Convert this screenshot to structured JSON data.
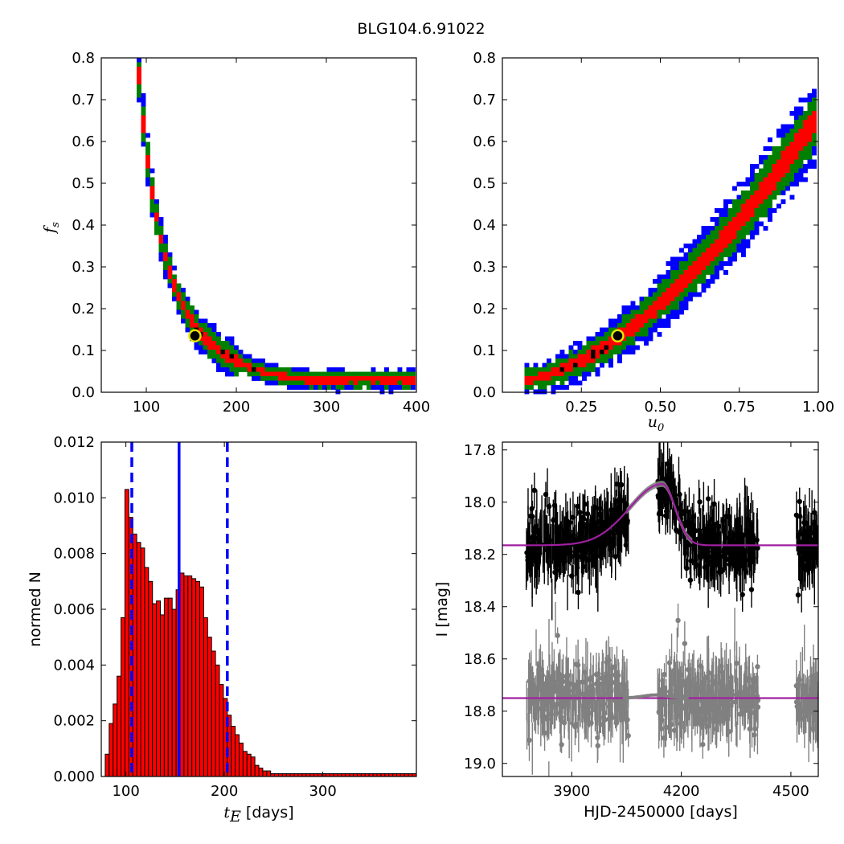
{
  "figure": {
    "title": "BLG104.6.91022"
  },
  "chart_data": [
    {
      "type": "heatmap",
      "panel": "tE_vs_fs",
      "xlabel": "",
      "ylabel": "f",
      "ylabel_sub": "s",
      "xlim": [
        50,
        400
      ],
      "ylim": [
        0,
        0.8
      ],
      "x_ticks": [
        "100",
        "200",
        "300",
        "400"
      ],
      "y_ticks": [
        "0.0",
        "0.1",
        "0.2",
        "0.3",
        "0.4",
        "0.5",
        "0.6",
        "0.7",
        "0.8"
      ],
      "best_fit": {
        "x": 154,
        "y": 0.135
      },
      "levels_colors": {
        "outer": "#0000ff",
        "mid": "#008000",
        "inner": "#ff0000",
        "peak": "#000000"
      },
      "curve": {
        "form": "fs = 0.80 * (80 / (tE - 10))^2.75",
        "x_range": [
          80,
          400
        ]
      }
    },
    {
      "type": "heatmap",
      "panel": "u0_vs_fs",
      "xlabel": "u",
      "xlabel_sub": "0",
      "ylabel": "",
      "xlim": [
        0,
        1.0
      ],
      "ylim": [
        0,
        0.8
      ],
      "x_ticks": [
        "0.25",
        "0.50",
        "0.75",
        "1.00"
      ],
      "y_ticks": [
        "0.0",
        "0.1",
        "0.2",
        "0.3",
        "0.4",
        "0.5",
        "0.6",
        "0.7",
        "0.8"
      ],
      "best_fit": {
        "x": 0.365,
        "y": 0.135
      },
      "levels_colors": {
        "outer": "#0000ff",
        "mid": "#008000",
        "inner": "#ff0000",
        "peak": "#000000"
      },
      "curve": {
        "form": "fs = 0.03 + 0.63 * ((u0 - 0.07)/0.93)^1.6",
        "x_range": [
          0.07,
          1.0
        ]
      }
    },
    {
      "type": "bar",
      "panel": "tE_histogram",
      "xlabel": "t",
      "xlabel_sub": "E",
      "xlabel_suffix": " [days]",
      "ylabel": "normed N",
      "xlim": [
        75,
        395
      ],
      "ylim": [
        0,
        0.012
      ],
      "x_ticks": [
        "100",
        "200",
        "300"
      ],
      "y_ticks": [
        "0.000",
        "0.002",
        "0.004",
        "0.006",
        "0.008",
        "0.010",
        "0.012"
      ],
      "bin_start": 79,
      "bin_width": 4,
      "values": [
        0.0008,
        0.0019,
        0.0026,
        0.0036,
        0.0057,
        0.0103,
        0.0093,
        0.0087,
        0.0084,
        0.0082,
        0.0075,
        0.007,
        0.0062,
        0.0063,
        0.0058,
        0.0064,
        0.0064,
        0.006,
        0.0067,
        0.0073,
        0.0072,
        0.0072,
        0.0071,
        0.007,
        0.0068,
        0.0057,
        0.005,
        0.0045,
        0.004,
        0.0033,
        0.0028,
        0.0022,
        0.0018,
        0.0015,
        0.0012,
        0.0009,
        0.0008,
        0.0007,
        0.0004,
        0.0003,
        0.0002,
        0.0002,
        0.0001,
        0.0001,
        0.0001,
        0.0001,
        0.0001,
        0.0001,
        0.0001,
        0.0001,
        0.0001,
        0.0001,
        0.0001,
        0.0001,
        0.0001,
        0.0001,
        0.0001,
        0.0001,
        0.0001,
        0.0001,
        0.0001,
        0.0001,
        0.0001,
        0.0001,
        0.0001,
        0.0001,
        0.0001,
        0.0001,
        0.0001,
        0.0001,
        0.0001,
        0.0001,
        0.0001,
        0.0001,
        0.0001,
        0.0001,
        0.0001,
        0.0001,
        0.0001
      ],
      "bar_color": "#ff0000",
      "vlines": [
        {
          "x": 154,
          "style": "solid",
          "color": "#0000ff"
        },
        {
          "x": 106,
          "style": "dashed",
          "color": "#0000ff"
        },
        {
          "x": 203,
          "style": "dashed",
          "color": "#0000ff"
        }
      ]
    },
    {
      "type": "scatter",
      "panel": "lightcurve",
      "xlabel": "HJD-2450000 [days]",
      "ylabel": "I [mag]",
      "xlim": [
        3710,
        4575
      ],
      "ylim": [
        19.05,
        17.77
      ],
      "x_ticks": [
        "3900",
        "4200",
        "4500"
      ],
      "y_ticks": [
        "17.8",
        "18.0",
        "18.2",
        "18.4",
        "18.6",
        "18.8",
        "19.0"
      ],
      "seasons": [
        [
          3775,
          4055
        ],
        [
          4135,
          4410
        ],
        [
          4515,
          4575
        ]
      ],
      "data_series": {
        "baseline": 18.16,
        "scatter": 0.06,
        "color": "#000000"
      },
      "residual_series": {
        "baseline": 18.75,
        "scatter": 0.06,
        "color": "#808080"
      },
      "model": {
        "baseline": 18.165,
        "peak_mag": 17.93,
        "t0": 4148,
        "tE_rise": 90,
        "tE_fall": 35,
        "color": "#a020a0"
      },
      "flat_model": {
        "mag": 18.75,
        "color": "#a020a0"
      }
    }
  ]
}
